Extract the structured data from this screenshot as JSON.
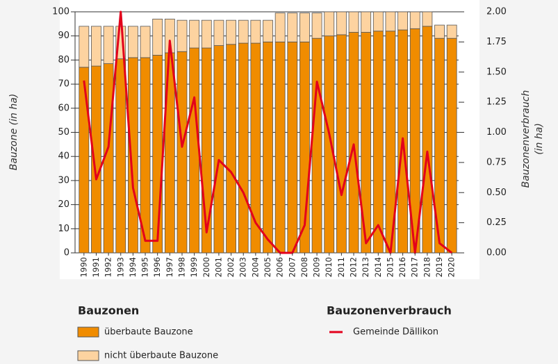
{
  "chart_data": {
    "type": "bar",
    "categories": [
      "1990",
      "1991",
      "1992",
      "1993",
      "1994",
      "1995",
      "1996",
      "1997",
      "1998",
      "1999",
      "2000",
      "2001",
      "2002",
      "2003",
      "2004",
      "2005",
      "2006",
      "2007",
      "2008",
      "2009",
      "2010",
      "2011",
      "2012",
      "2013",
      "2014",
      "2015",
      "2016",
      "2017",
      "2018",
      "2019",
      "2020"
    ],
    "series": [
      {
        "name": "überbaute Bauzone",
        "color": "#f08c00",
        "type": "bar",
        "values": [
          77,
          77.5,
          78.5,
          80.5,
          81,
          81,
          82,
          83,
          83.5,
          85,
          85,
          86,
          86.5,
          87,
          87,
          87.5,
          87.5,
          87.5,
          87.5,
          89,
          90,
          90.5,
          91.5,
          91.5,
          92,
          92,
          92.5,
          93,
          94,
          89,
          89
        ]
      },
      {
        "name": "nicht überbaute Bauzone",
        "color": "#fdd3a0",
        "type": "bar",
        "values": [
          17,
          16.5,
          15.5,
          13.5,
          13,
          13,
          15,
          14,
          13,
          11.5,
          11.5,
          10.5,
          10,
          9.5,
          9.5,
          9,
          12,
          12,
          12,
          10.5,
          10,
          9.5,
          8.5,
          8.5,
          8,
          8,
          7.5,
          7,
          6,
          5.5,
          5.5
        ]
      },
      {
        "name": "Gemeinde Dällikon",
        "color": "#e3001b",
        "type": "line",
        "axis": "y2",
        "values": [
          1.43,
          0.61,
          0.88,
          2.0,
          0.54,
          0.1,
          0.1,
          1.76,
          0.88,
          1.29,
          0.17,
          0.77,
          0.67,
          0.5,
          0.25,
          0.11,
          0,
          0,
          0.23,
          1.42,
          0.99,
          0.48,
          0.9,
          0.08,
          0.23,
          0,
          0.95,
          0,
          0.84,
          0.08,
          0
        ]
      }
    ],
    "ylabel": "Bauzone (in ha)",
    "y2label": [
      "Bauzonenverbrauch",
      "(in ha)"
    ],
    "ylim": [
      0,
      100
    ],
    "yticks": [
      0,
      10,
      20,
      30,
      40,
      50,
      60,
      70,
      80,
      90,
      100
    ],
    "y2lim": [
      0,
      2
    ],
    "y2ticks": [
      {
        "value": 0,
        "label": "0.00"
      },
      {
        "value": 0.25,
        "label": "0.25"
      },
      {
        "value": 0.5,
        "label": "0.50"
      },
      {
        "value": 0.75,
        "label": "0.75"
      },
      {
        "value": 1,
        "label": "1.00"
      },
      {
        "value": 1.25,
        "label": "1.25"
      },
      {
        "value": 1.5,
        "label": "1.50"
      },
      {
        "value": 1.75,
        "label": "1.75"
      },
      {
        "value": 2,
        "label": "2.00"
      }
    ],
    "grid": true,
    "stacked": true,
    "legend": {
      "bar_title": "Bauzonen",
      "line_title": "Bauzonenverbrauch"
    }
  }
}
